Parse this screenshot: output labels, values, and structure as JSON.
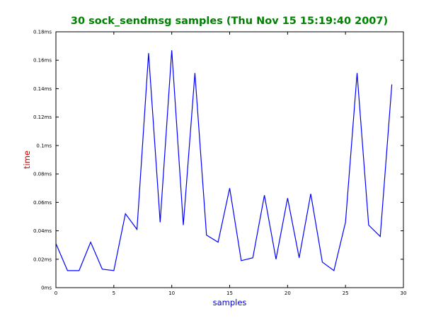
{
  "chart_data": {
    "type": "line",
    "title": "30 sock_sendmsg samples (Thu Nov 15 15:19:40 2007)",
    "xlabel": "samples",
    "ylabel": "time",
    "xlim": [
      0,
      30
    ],
    "ylim": [
      0,
      0.18
    ],
    "x_ticks": [
      0,
      5,
      10,
      15,
      20,
      25,
      30
    ],
    "x_tick_labels": [
      "0",
      "5",
      "10",
      "15",
      "20",
      "25",
      "30"
    ],
    "y_ticks": [
      0,
      0.02,
      0.04,
      0.06,
      0.08,
      0.1,
      0.12,
      0.14,
      0.16,
      0.18
    ],
    "y_tick_labels": [
      "0ms",
      "0.02ms",
      "0.04ms",
      "0.06ms",
      "0.08ms",
      "0.1ms",
      "0.12ms",
      "0.14ms",
      "0.16ms",
      "0.18ms"
    ],
    "grid": false,
    "legend": "none",
    "series": [
      {
        "x": [
          0,
          1,
          2,
          3,
          4,
          5,
          6,
          7,
          8,
          9,
          10,
          11,
          12,
          13,
          14,
          15,
          16,
          17,
          18,
          19,
          20,
          21,
          22,
          23,
          24,
          25,
          26,
          27,
          28,
          29
        ],
        "values": [
          0.031,
          0.012,
          0.012,
          0.032,
          0.013,
          0.012,
          0.052,
          0.041,
          0.165,
          0.046,
          0.167,
          0.044,
          0.151,
          0.037,
          0.032,
          0.07,
          0.019,
          0.021,
          0.065,
          0.02,
          0.063,
          0.021,
          0.066,
          0.018,
          0.012,
          0.046,
          0.151,
          0.044,
          0.036,
          0.143
        ]
      }
    ],
    "colors": {
      "title": "#008000",
      "axis_labels": "#0000cc",
      "ylabel": "#cc0000",
      "line": "#0000ff"
    }
  }
}
